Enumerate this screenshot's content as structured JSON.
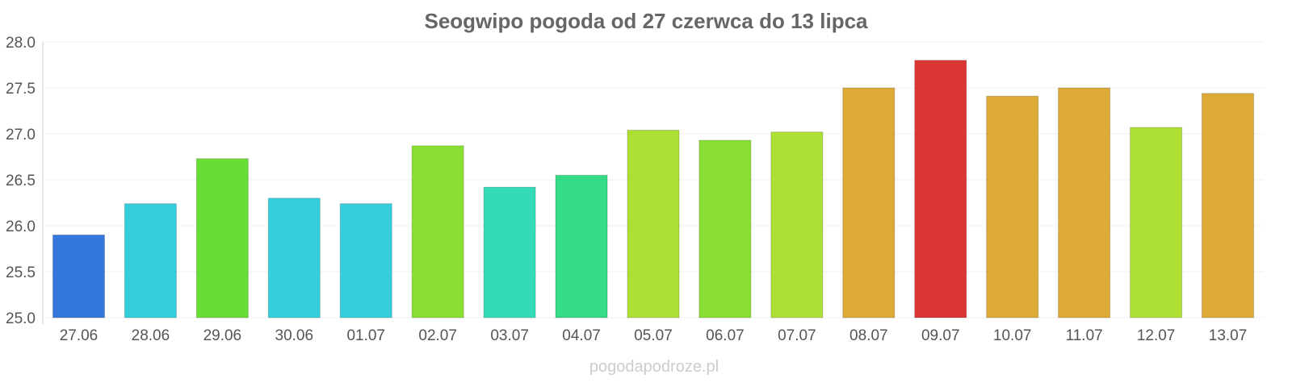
{
  "chart_data": {
    "type": "bar",
    "title": "Seogwipo pogoda od 27 czerwca do 13 lipca",
    "xlabel": "",
    "ylabel": "",
    "ylim": [
      25.0,
      28.0
    ],
    "yticks": [
      "25.0",
      "25.5",
      "26.0",
      "26.5",
      "27.0",
      "27.5",
      "28.0"
    ],
    "grid": true,
    "categories": [
      "27.06",
      "28.06",
      "29.06",
      "30.06",
      "01.07",
      "02.07",
      "03.07",
      "04.07",
      "05.07",
      "06.07",
      "07.07",
      "08.07",
      "09.07",
      "10.07",
      "11.07",
      "12.07",
      "13.07"
    ],
    "values": [
      25.9,
      26.24,
      26.73,
      26.3,
      26.24,
      26.87,
      26.42,
      26.55,
      27.04,
      26.93,
      27.02,
      27.5,
      27.8,
      27.41,
      27.5,
      27.07,
      27.44
    ],
    "colors": [
      "#3578db",
      "#35cedb",
      "#69dd35",
      "#35cedb",
      "#35cedb",
      "#8adf35",
      "#35dbb7",
      "#35db87",
      "#addf35",
      "#8adf35",
      "#addf35",
      "#dcaa35",
      "#dc3535",
      "#dcaa35",
      "#dcaa35",
      "#addf35",
      "#dcaa35"
    ]
  },
  "watermark": "pogodapodroze.pl"
}
